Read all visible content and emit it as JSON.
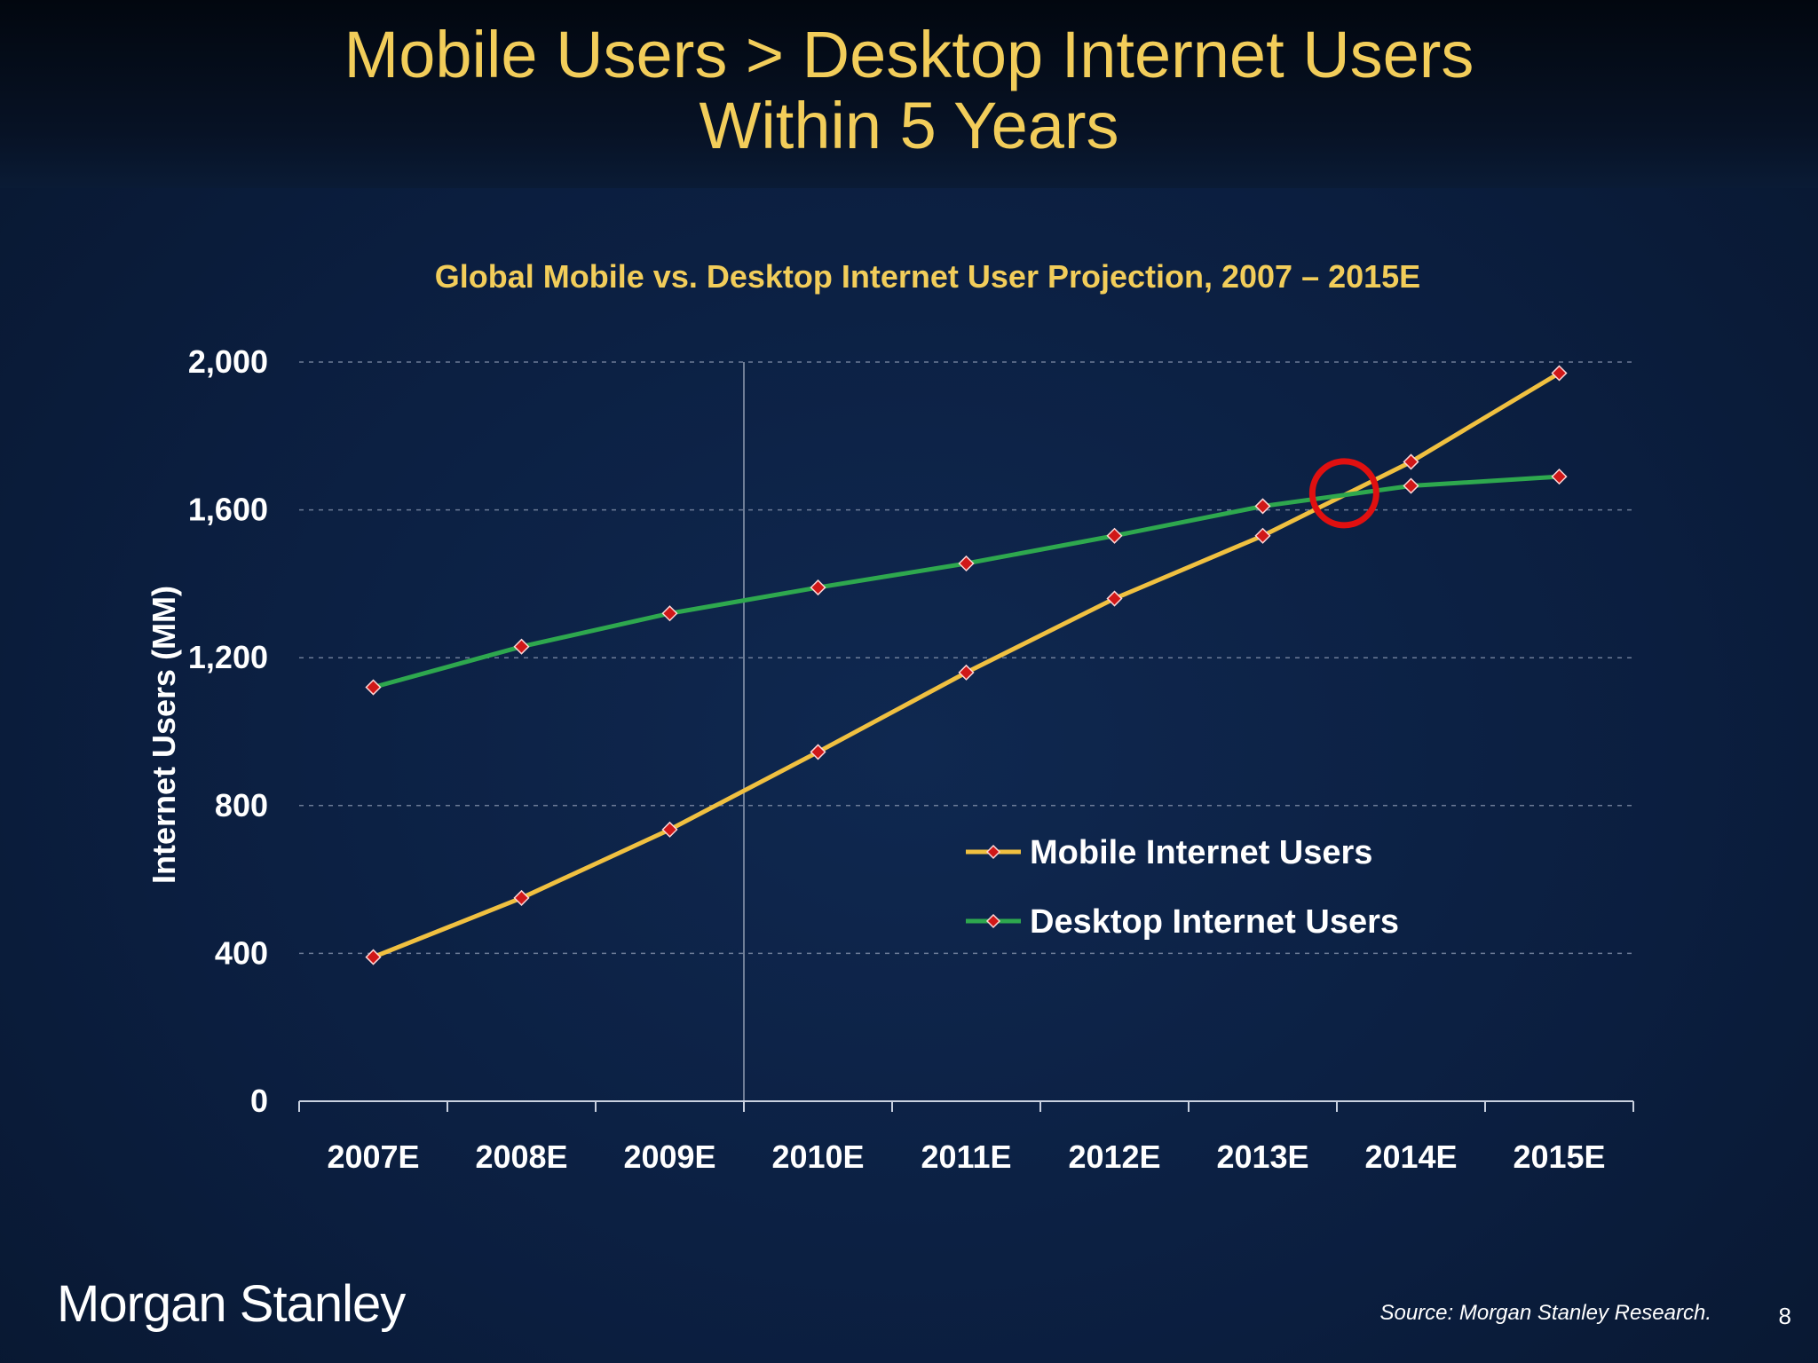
{
  "slide": {
    "title_line1": "Mobile Users > Desktop Internet Users",
    "title_line2": "Within 5 Years",
    "logo_text": "Morgan Stanley",
    "source_text": "Source: Morgan Stanley Research.",
    "page_number": "8"
  },
  "chart_data": {
    "type": "line",
    "title": "Global Mobile vs. Desktop Internet User Projection, 2007 – 2015E",
    "categories": [
      "2007E",
      "2008E",
      "2009E",
      "2010E",
      "2011E",
      "2012E",
      "2013E",
      "2014E",
      "2015E"
    ],
    "series": [
      {
        "name": "Mobile Internet Users",
        "values": [
          390,
          550,
          735,
          945,
          1160,
          1360,
          1530,
          1730,
          1970
        ],
        "color": "#f0c040"
      },
      {
        "name": "Desktop Internet Users",
        "values": [
          1120,
          1230,
          1320,
          1390,
          1455,
          1530,
          1610,
          1665,
          1690
        ],
        "color": "#2ea84e"
      }
    ],
    "marker_color": "#d01818",
    "xlabel": "",
    "ylabel": "Internet Users (MM)",
    "ylim": [
      0,
      2000
    ],
    "yticks": [
      0,
      400,
      800,
      1200,
      1600,
      2000
    ],
    "ytick_labels": [
      "0",
      "400",
      "800",
      "1,200",
      "1,600",
      "2,000"
    ],
    "grid": true,
    "legend_position": "lower-right",
    "annotation": {
      "type": "circle",
      "note": "crossover highlight",
      "x_between": [
        "2013E",
        "2014E"
      ],
      "x_fraction": 0.55,
      "y": 1645,
      "color": "#e01010"
    }
  }
}
